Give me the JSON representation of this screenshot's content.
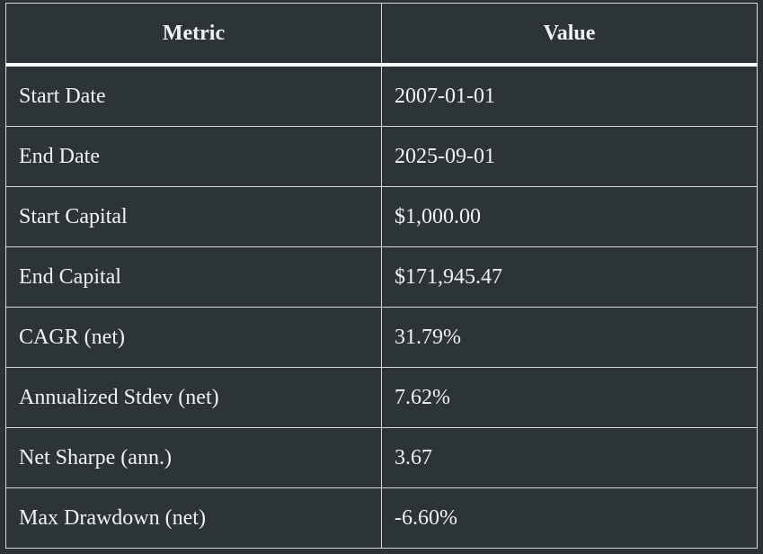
{
  "table": {
    "header": [
      "Metric",
      "Value"
    ],
    "rows": [
      [
        "Start Date",
        "2007-01-01"
      ],
      [
        "End Date",
        "2025-09-01"
      ],
      [
        "Start Capital",
        "$1,000.00"
      ],
      [
        "End Capital",
        "$171,945.47"
      ],
      [
        "CAGR (net)",
        "31.79%"
      ],
      [
        "Annualized Stdev (net)",
        "7.62%"
      ],
      [
        "Net Sharpe (ann.)",
        "3.67"
      ],
      [
        "Max Drawdown (net)",
        "-6.60%"
      ]
    ]
  }
}
